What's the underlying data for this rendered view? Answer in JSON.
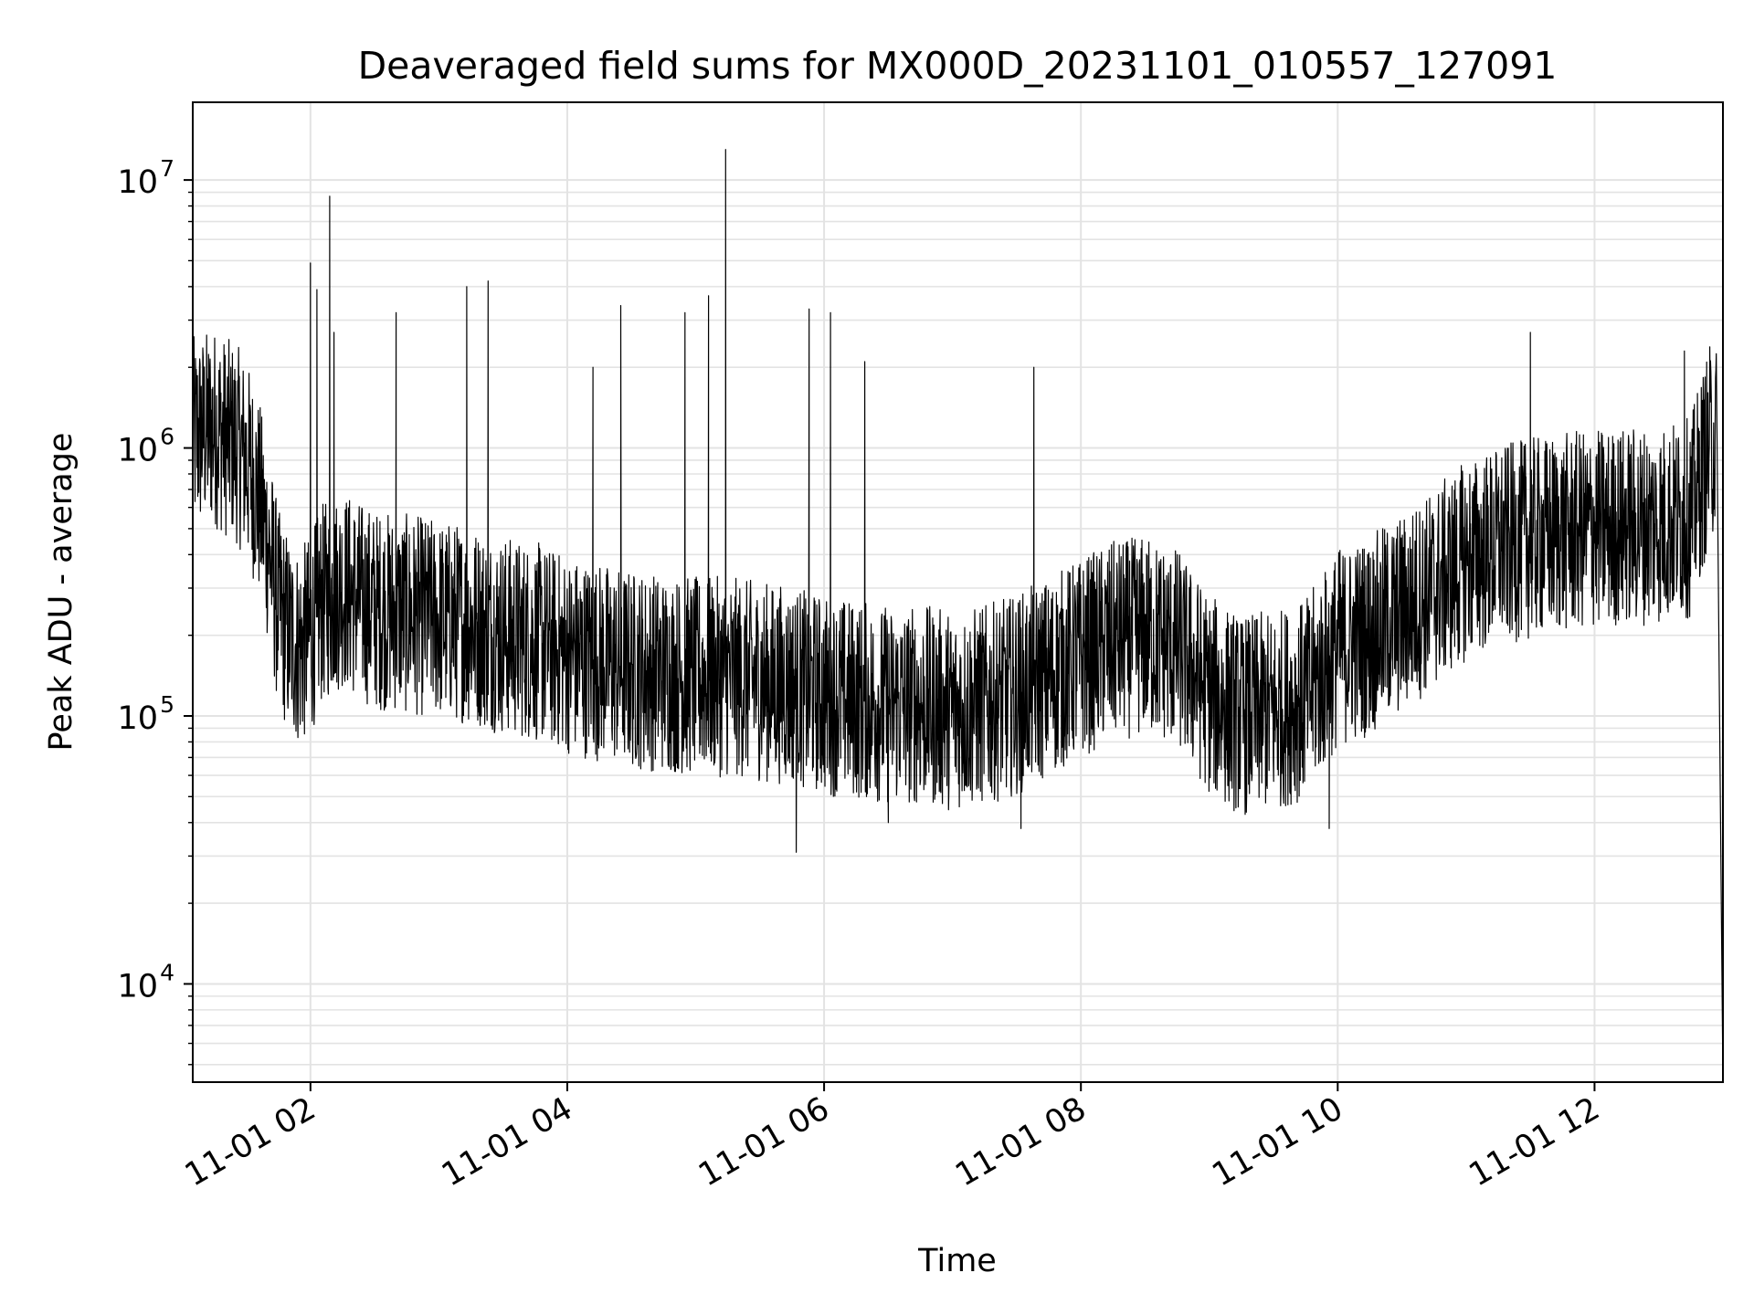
{
  "chart_data": {
    "type": "line",
    "title": "Deaveraged field sums for MX000D_20231101_010557_127091",
    "xlabel": "Time",
    "ylabel": "Peak ADU - average",
    "yscale": "log",
    "ylim": [
      4300,
      19500000
    ],
    "xlim": [
      "2023-11-01 01:05",
      "2023-11-01 13:00"
    ],
    "grid": true,
    "legend": "none",
    "x_ticks": [
      "11-01 02",
      "11-01 04",
      "11-01 06",
      "11-01 08",
      "11-01 10",
      "11-01 12"
    ],
    "y_ticks": [
      {
        "base": "10",
        "exp": "4",
        "value": 10000
      },
      {
        "base": "10",
        "exp": "5",
        "value": 100000
      },
      {
        "base": "10",
        "exp": "6",
        "value": 1000000
      },
      {
        "base": "10",
        "exp": "7",
        "value": 10000000
      }
    ],
    "line_color": "#000000",
    "series": [
      {
        "x": [
          "2023-11-01 01:05",
          "2023-11-01 01:10",
          "2023-11-01 01:15",
          "2023-11-01 01:20",
          "2023-11-01 01:25",
          "2023-11-01 01:30",
          "2023-11-01 01:35",
          "2023-11-01 01:40",
          "2023-11-01 01:45",
          "2023-11-01 01:50",
          "2023-11-01 01:55",
          "2023-11-01 02:00",
          "2023-11-01 02:05",
          "2023-11-01 02:10",
          "2023-11-01 02:15",
          "2023-11-01 02:20",
          "2023-11-01 02:30",
          "2023-11-01 02:45",
          "2023-11-01 03:00",
          "2023-11-01 03:15",
          "2023-11-01 03:30",
          "2023-11-01 03:45",
          "2023-11-01 04:00",
          "2023-11-01 04:15",
          "2023-11-01 04:30",
          "2023-11-01 04:45",
          "2023-11-01 05:00",
          "2023-11-01 05:15",
          "2023-11-01 05:30",
          "2023-11-01 05:45",
          "2023-11-01 06:00",
          "2023-11-01 06:15",
          "2023-11-01 06:30",
          "2023-11-01 06:45",
          "2023-11-01 07:00",
          "2023-11-01 07:15",
          "2023-11-01 07:30",
          "2023-11-01 07:45",
          "2023-11-01 08:00",
          "2023-11-01 08:15",
          "2023-11-01 08:30",
          "2023-11-01 08:45",
          "2023-11-01 09:00",
          "2023-11-01 09:15",
          "2023-11-01 09:30",
          "2023-11-01 09:45",
          "2023-11-01 10:00",
          "2023-11-01 10:15",
          "2023-11-01 10:30",
          "2023-11-01 10:45",
          "2023-11-01 11:00",
          "2023-11-01 11:15",
          "2023-11-01 11:30",
          "2023-11-01 11:45",
          "2023-11-01 12:00",
          "2023-11-01 12:15",
          "2023-11-01 12:30",
          "2023-11-01 12:45",
          "2023-11-01 12:50",
          "2023-11-01 12:55",
          "2023-11-01 12:58",
          "2023-11-01 13:00"
        ],
        "y": [
          1100000,
          1150000,
          1200000,
          1100000,
          1050000,
          900000,
          700000,
          450000,
          250000,
          200000,
          180000,
          200000,
          260000,
          280000,
          300000,
          280000,
          250000,
          240000,
          230000,
          220000,
          200000,
          190000,
          170000,
          160000,
          150000,
          145000,
          140000,
          140000,
          135000,
          130000,
          120000,
          115000,
          110000,
          110000,
          105000,
          110000,
          120000,
          140000,
          165000,
          190000,
          200000,
          180000,
          120000,
          100000,
          105000,
          115000,
          180000,
          200000,
          240000,
          300000,
          380000,
          430000,
          460000,
          480000,
          500000,
          510000,
          520000,
          550000,
          800000,
          1100000,
          1000000,
          4000
        ]
      }
    ],
    "annotated_peaks": [
      {
        "x": "2023-11-01 02:00",
        "y": 4900000
      },
      {
        "x": "2023-11-01 02:03",
        "y": 3900000
      },
      {
        "x": "2023-11-01 02:09",
        "y": 8700000
      },
      {
        "x": "2023-11-01 02:11",
        "y": 2700000
      },
      {
        "x": "2023-11-01 02:40",
        "y": 3200000
      },
      {
        "x": "2023-11-01 03:13",
        "y": 4000000
      },
      {
        "x": "2023-11-01 03:23",
        "y": 4200000
      },
      {
        "x": "2023-11-01 04:12",
        "y": 2000000
      },
      {
        "x": "2023-11-01 04:25",
        "y": 3400000
      },
      {
        "x": "2023-11-01 04:55",
        "y": 3200000
      },
      {
        "x": "2023-11-01 05:06",
        "y": 3700000
      },
      {
        "x": "2023-11-01 05:14",
        "y": 13000000
      },
      {
        "x": "2023-11-01 05:53",
        "y": 3300000
      },
      {
        "x": "2023-11-01 06:03",
        "y": 3200000
      },
      {
        "x": "2023-11-01 06:19",
        "y": 2100000
      },
      {
        "x": "2023-11-01 07:38",
        "y": 2000000
      },
      {
        "x": "2023-11-01 11:30",
        "y": 2700000
      },
      {
        "x": "2023-11-01 12:42",
        "y": 2300000
      }
    ],
    "annotated_dips": [
      {
        "x": "2023-11-01 05:47",
        "y": 31000
      },
      {
        "x": "2023-11-01 07:32",
        "y": 38000
      },
      {
        "x": "2023-11-01 09:56",
        "y": 38000
      },
      {
        "x": "2023-11-01 06:30",
        "y": 40000
      }
    ]
  }
}
